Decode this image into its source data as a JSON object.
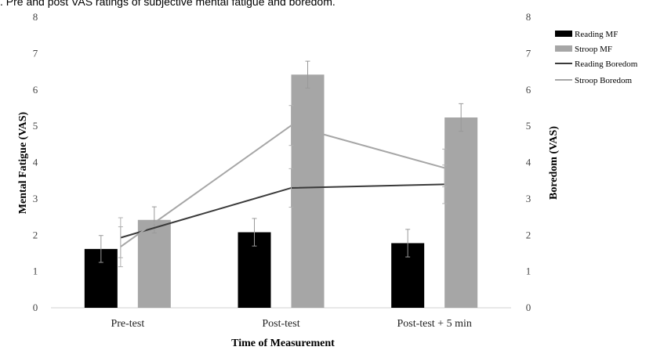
{
  "caption": ". Pre and post VAS ratings of subjective mental fatigue and boredom.",
  "chart_data": {
    "type": "bar",
    "categories": [
      "Pre-test",
      "Post-test",
      "Post-test + 5 min"
    ],
    "xlabel": "Time of Measurement",
    "ylabel": "Mental Fatigue (VAS)",
    "ylabel_right": "Boredom (VAS)",
    "ylim": [
      0,
      8
    ],
    "yticks": [
      "0",
      "1",
      "2",
      "3",
      "4",
      "5",
      "6",
      "7",
      "8"
    ],
    "grid": false,
    "legend_position": "right",
    "series": [
      {
        "name": "Reading MF",
        "kind": "bar",
        "color": "#000000",
        "values": [
          1.62,
          2.08,
          1.78
        ],
        "errors": [
          0.37,
          0.38,
          0.38
        ]
      },
      {
        "name": "Stroop MF",
        "kind": "bar",
        "color": "#a6a6a6",
        "values": [
          2.42,
          6.42,
          5.24
        ],
        "errors": [
          0.36,
          0.37,
          0.38
        ]
      },
      {
        "name": "Reading Boredom",
        "kind": "line",
        "axis": "right",
        "color": "#3a3a3a",
        "values": [
          1.93,
          3.3,
          3.4
        ],
        "errors": [
          0.55,
          0.53,
          0.53
        ]
      },
      {
        "name": "Stroop Boredom",
        "kind": "line",
        "axis": "right",
        "color": "#a6a6a6",
        "values": [
          1.68,
          5.02,
          3.85
        ],
        "errors": [
          0.55,
          0.55,
          0.52
        ]
      }
    ]
  }
}
